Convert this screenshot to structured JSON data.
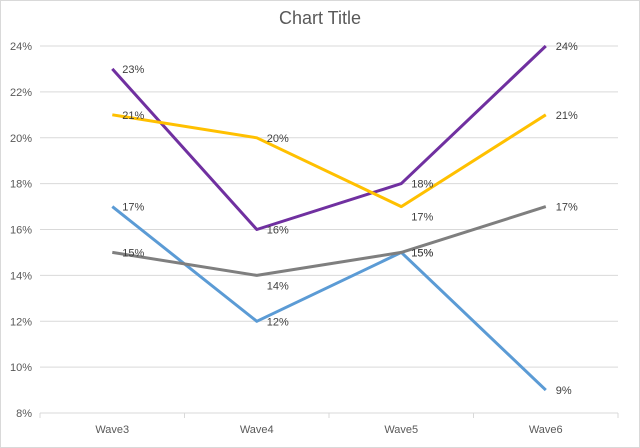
{
  "chart_data": {
    "type": "line",
    "title": "Chart Title",
    "categories": [
      "Wave3",
      "Wave4",
      "Wave5",
      "Wave6"
    ],
    "ylim": [
      8,
      24
    ],
    "ytick_step": 2,
    "yticks": [
      "8%",
      "10%",
      "12%",
      "14%",
      "16%",
      "18%",
      "20%",
      "22%",
      "24%"
    ],
    "grid": true,
    "legend": "none",
    "series": [
      {
        "color": "#7030a0",
        "values": [
          23,
          16,
          18,
          24
        ],
        "labels": [
          "23%",
          "16%",
          "18%",
          "24%"
        ]
      },
      {
        "color": "#ffc000",
        "values": [
          21,
          20,
          17,
          21
        ],
        "labels": [
          "21%",
          "20%",
          "17%",
          "21%"
        ]
      },
      {
        "color": "#5b9bd5",
        "values": [
          17,
          12,
          15,
          9
        ],
        "labels": [
          "17%",
          "12%",
          "15%",
          "9%"
        ]
      },
      {
        "color": "#7f7f7f",
        "values": [
          15,
          14,
          15,
          17
        ],
        "labels": [
          "15%",
          "14%",
          "15%",
          "17%"
        ]
      }
    ]
  }
}
